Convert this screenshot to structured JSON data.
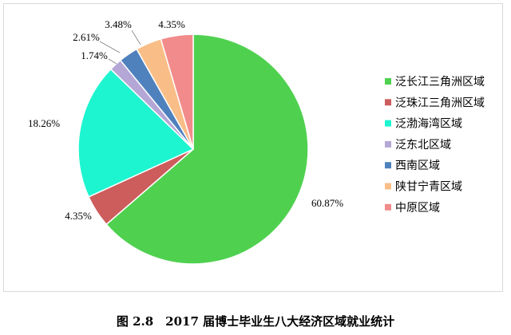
{
  "chart_data": {
    "type": "pie",
    "title": "",
    "categories": [
      "泛长江三角洲区域",
      "泛珠江三角洲区域",
      "泛渤海湾区域",
      "泛东北区域",
      "西南区域",
      "陕甘宁青区域",
      "中原区域"
    ],
    "values": [
      60.87,
      4.35,
      18.26,
      1.74,
      2.61,
      3.48,
      4.35
    ],
    "labels": [
      "60.87%",
      "4.35%",
      "18.26%",
      "1.74%",
      "2.61%",
      "3.48%",
      "4.35%"
    ],
    "colors": [
      "#4fd14f",
      "#cd5c5c",
      "#1df5d0",
      "#b4a7d6",
      "#4f81bd",
      "#f9be87",
      "#f28b8b"
    ],
    "legend_position": "right",
    "start_angle_deg": 0,
    "direction": "clockwise"
  },
  "caption": "图 2.8　2017 届博士毕业生八大经济区域就业统计"
}
